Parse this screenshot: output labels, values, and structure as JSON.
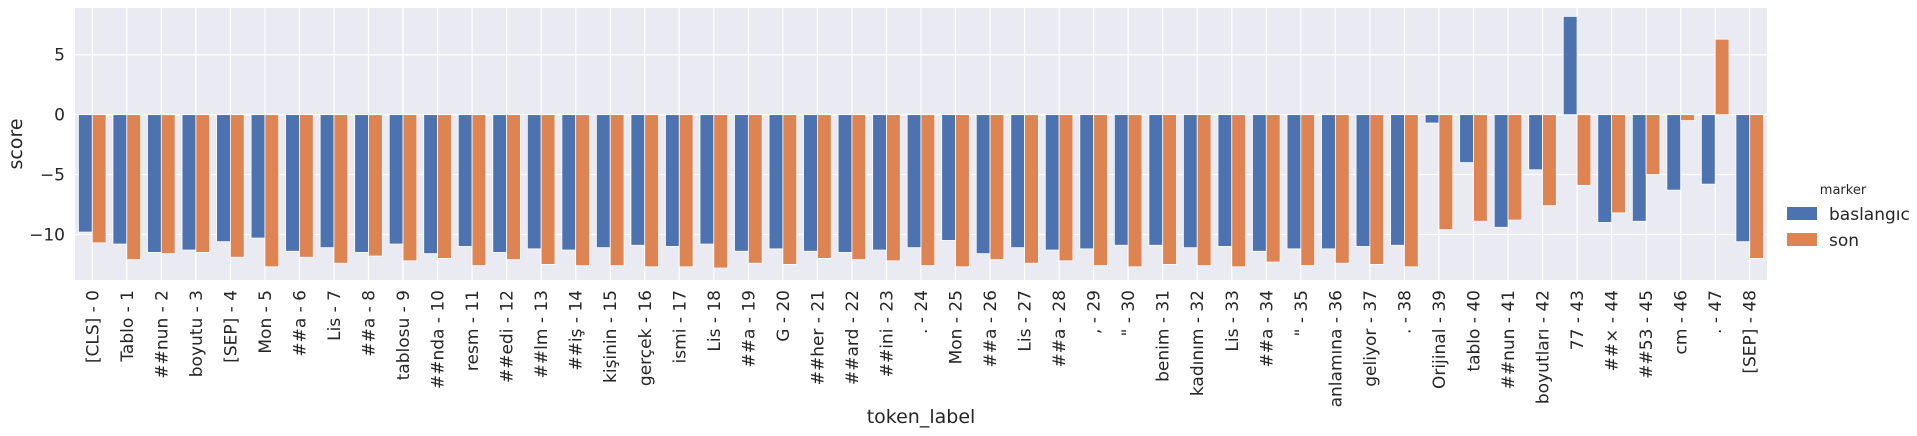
{
  "colors": {
    "background": "#eaeaf2",
    "grid": "#ffffff",
    "baslangic": "#4c72b0",
    "son": "#dd8452"
  },
  "chart_data": {
    "type": "bar",
    "xlabel": "token_label",
    "ylabel": "score",
    "ylim": [
      -13.8,
      8.9
    ],
    "yticks": [
      -10,
      -5,
      0,
      5
    ],
    "grid": true,
    "legend_title": "marker",
    "legend_position": "right",
    "categories": [
      "[CLS] - 0",
      "Tablo - 1",
      "##nun - 2",
      "boyutu - 3",
      "[SEP] - 4",
      "Mon - 5",
      "##a - 6",
      "Lis - 7",
      "##a - 8",
      "tablosu - 9",
      "##nda - 10",
      "resm - 11",
      "##edi - 12",
      "##lm - 13",
      "##iş - 14",
      "kişinin - 15",
      "gerçek - 16",
      "ismi - 17",
      "Lis - 18",
      "##a - 19",
      "G - 20",
      "##her - 21",
      "##ard - 22",
      "##ini - 23",
      ". - 24",
      "Mon - 25",
      "##a - 26",
      "Lis - 27",
      "##a - 28",
      ", - 29",
      "\" - 30",
      "benim - 31",
      "kadınım - 32",
      "Lis - 33",
      "##a - 34",
      "\" - 35",
      "anlamına - 36",
      "geliyor - 37",
      ". - 38",
      "Orijinal - 39",
      "tablo - 40",
      "##nun - 41",
      "boyutları - 42",
      "77 - 43",
      "##× - 44",
      "##53 - 45",
      "cm - 46",
      ". - 47",
      "[SEP] - 48"
    ],
    "series": [
      {
        "name": "baslangıc",
        "values": [
          -9.8,
          -10.8,
          -11.5,
          -11.3,
          -10.6,
          -10.3,
          -11.4,
          -11.1,
          -11.5,
          -10.8,
          -11.6,
          -11.0,
          -11.5,
          -11.2,
          -11.3,
          -11.1,
          -10.9,
          -11.0,
          -10.8,
          -11.4,
          -11.2,
          -11.4,
          -11.5,
          -11.3,
          -11.1,
          -10.5,
          -11.6,
          -11.1,
          -11.3,
          -11.2,
          -10.9,
          -10.9,
          -11.1,
          -11.0,
          -11.4,
          -11.2,
          -11.2,
          -11.0,
          -10.9,
          -0.7,
          -4.0,
          -9.4,
          -4.6,
          8.2,
          -9.0,
          -8.9,
          -6.3,
          -5.8,
          -10.6
        ]
      },
      {
        "name": "son",
        "values": [
          -10.7,
          -12.1,
          -11.6,
          -11.5,
          -11.9,
          -12.7,
          -11.9,
          -12.4,
          -11.8,
          -12.2,
          -12.0,
          -12.6,
          -12.1,
          -12.5,
          -12.6,
          -12.6,
          -12.7,
          -12.7,
          -12.8,
          -12.4,
          -12.5,
          -12.0,
          -12.1,
          -12.2,
          -12.6,
          -12.7,
          -12.1,
          -12.4,
          -12.2,
          -12.6,
          -12.7,
          -12.5,
          -12.6,
          -12.7,
          -12.3,
          -12.6,
          -12.4,
          -12.5,
          -12.7,
          -9.6,
          -8.9,
          -8.8,
          -7.6,
          -5.9,
          -8.2,
          -5.0,
          -0.5,
          6.3,
          -12.0
        ]
      }
    ]
  }
}
